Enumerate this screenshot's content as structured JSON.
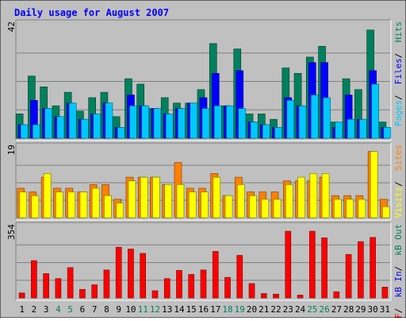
{
  "chart_data": {
    "type": "bar",
    "title": "Daily usage for August 2007",
    "x": [
      "1",
      "2",
      "3",
      "4",
      "5",
      "6",
      "7",
      "8",
      "9",
      "10",
      "11",
      "12",
      "13",
      "14",
      "15",
      "16",
      "17",
      "18",
      "19",
      "20",
      "21",
      "22",
      "23",
      "24",
      "25",
      "26",
      "27",
      "28",
      "29",
      "30",
      "31"
    ],
    "weekend_days": [
      4,
      5,
      11,
      12,
      18,
      19,
      25,
      26
    ],
    "panels": [
      {
        "id": "hits",
        "ymax_label": "42",
        "ymax": 42,
        "series": [
          {
            "name": "Pages",
            "color": "#00c8ff",
            "values": [
              5,
              5,
              11,
              8,
              13,
              7,
              9,
              13,
              4,
              12,
              12,
              11,
              9,
              11,
              13,
              11,
              12,
              12,
              11,
              6,
              5,
              4,
              14,
              12,
              16,
              15,
              6,
              7,
              7,
              20,
              4
            ]
          },
          {
            "name": "Files",
            "color": "#0000ff",
            "values": [
              5,
              14,
              11,
              8,
              13,
              7,
              9,
              13,
              4,
              16,
              12,
              11,
              9,
              11,
              13,
              15,
              24,
              12,
              25,
              6,
              5,
              4,
              15,
              12,
              28,
              28,
              4,
              16,
              7,
              25,
              4
            ]
          },
          {
            "name": "Hits",
            "color": "#00805c",
            "values": [
              9,
              23,
              19,
              12,
              17,
              10,
              15,
              17,
              8,
              22,
              20,
              11,
              15,
              13,
              13,
              18,
              35,
              12,
              33,
              9,
              9,
              7,
              26,
              24,
              30,
              34,
              6,
              22,
              18,
              40,
              6
            ]
          }
        ]
      },
      {
        "id": "visits",
        "ymax_label": "19",
        "ymax": 19,
        "series": [
          {
            "name": "Visits",
            "color": "#ffff00",
            "values": [
              7,
              6,
              12,
              7,
              7,
              7,
              8,
              6,
              4,
              10,
              11,
              11,
              9,
              9,
              7,
              7,
              11,
              6,
              9,
              6,
              5,
              5,
              9,
              11,
              12,
              12,
              5,
              5,
              5,
              18,
              3
            ]
          },
          {
            "name": "Sites",
            "color": "#ff8000",
            "values": [
              8,
              7,
              11,
              8,
              8,
              7,
              9,
              9,
              5,
              11,
              11,
              11,
              9,
              15,
              8,
              8,
              12,
              6,
              11,
              7,
              7,
              7,
              10,
              10,
              10,
              11,
              6,
              6,
              6,
              18,
              5
            ]
          }
        ]
      },
      {
        "id": "kbytes",
        "ymax_label": "354",
        "ymax": 354,
        "series": [
          {
            "name": "kB F",
            "color": "#ff0000",
            "values": [
              25,
              187,
              122,
              97,
              152,
              43,
              66,
              140,
              254,
              245,
              223,
              36,
              97,
              138,
              118,
              140,
              233,
              103,
              213,
              72,
              22,
              19,
              334,
              14,
              334,
              301,
              31,
              218,
              282,
              303,
              54
            ]
          },
          {
            "name": "kB In",
            "color": "#0000ff",
            "values": []
          },
          {
            "name": "kB Out",
            "color": "#00805c",
            "values": []
          }
        ]
      }
    ]
  }
}
